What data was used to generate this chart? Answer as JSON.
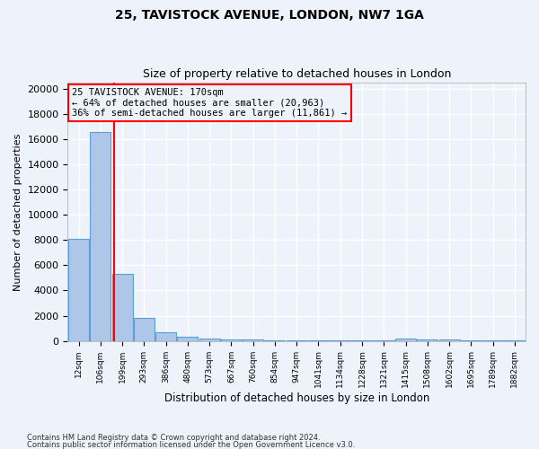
{
  "title1": "25, TAVISTOCK AVENUE, LONDON, NW7 1GA",
  "title2": "Size of property relative to detached houses in London",
  "xlabel": "Distribution of detached houses by size in London",
  "ylabel": "Number of detached properties",
  "annotation_line1": "25 TAVISTOCK AVENUE: 170sqm",
  "annotation_line2": "← 64% of detached houses are smaller (20,963)",
  "annotation_line3": "36% of semi-detached houses are larger (11,861) →",
  "bar_heights": [
    8100,
    16600,
    5300,
    1800,
    700,
    350,
    200,
    100,
    80,
    60,
    40,
    30,
    20,
    15,
    10,
    200,
    100,
    80,
    50,
    30,
    20
  ],
  "bar_color": "#aec6e8",
  "bar_edge_color": "#5a9fd4",
  "vline_color": "red",
  "vline_after_bar": 1,
  "ylim": [
    0,
    20500
  ],
  "tick_labels": [
    "12sqm",
    "106sqm",
    "199sqm",
    "293sqm",
    "386sqm",
    "480sqm",
    "573sqm",
    "667sqm",
    "760sqm",
    "854sqm",
    "947sqm",
    "1041sqm",
    "1134sqm",
    "1228sqm",
    "1321sqm",
    "1415sqm",
    "1508sqm",
    "1602sqm",
    "1695sqm",
    "1789sqm",
    "1882sqm"
  ],
  "footnote1": "Contains HM Land Registry data © Crown copyright and database right 2024.",
  "footnote2": "Contains public sector information licensed under the Open Government Licence v3.0.",
  "bg_color": "#eef2fa",
  "grid_color": "#ffffff",
  "annotation_box_color": "red",
  "yticks": [
    0,
    2000,
    4000,
    6000,
    8000,
    10000,
    12000,
    14000,
    16000,
    18000,
    20000
  ]
}
